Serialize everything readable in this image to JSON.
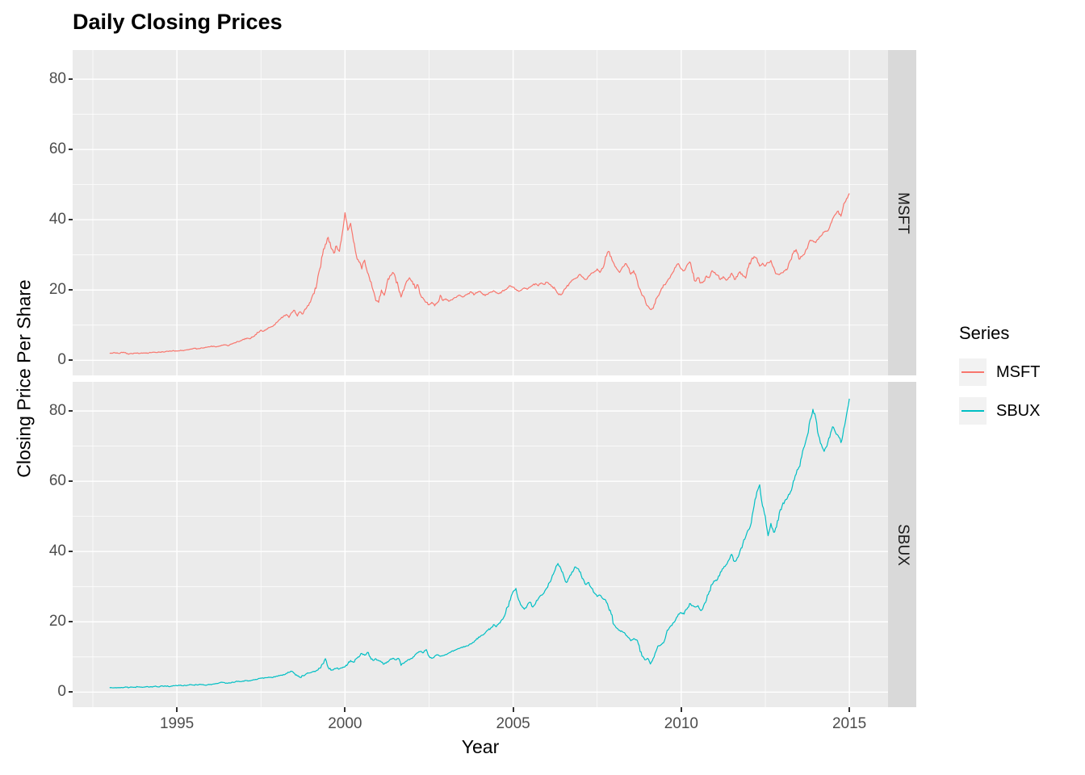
{
  "title": "Daily Closing Prices",
  "axes": {
    "x_label": "Year",
    "y_label": "Closing Price Per Share",
    "x_ticks": [
      1995,
      2000,
      2005,
      2010,
      2015
    ],
    "y_ticks": [
      0,
      20,
      40,
      60,
      80
    ]
  },
  "facets": [
    "MSFT",
    "SBUX"
  ],
  "legend": {
    "title": "Series",
    "entries": [
      {
        "label": "MSFT",
        "color": "#F8766D"
      },
      {
        "label": "SBUX",
        "color": "#00BFC4"
      }
    ]
  },
  "colors": {
    "panel_bg": "#EBEBEB",
    "strip_bg": "#D9D9D9",
    "grid": "#FFFFFF",
    "tick_text": "#4D4D4D",
    "msft": "#F8766D",
    "sbux": "#00BFC4"
  },
  "chart_data": {
    "type": "line",
    "title": "Daily Closing Prices",
    "xlabel": "Year",
    "ylabel": "Closing Price Per Share",
    "facet_layout": "rows",
    "grid": true,
    "legend_position": "right",
    "x_range": [
      1991.9,
      2016.15
    ],
    "y_range": [
      -4.3,
      88.3
    ],
    "x_start": 1993.0,
    "x_step_years": 0.0833333,
    "series": [
      {
        "name": "MSFT",
        "facet": "MSFT",
        "color": "#F8766D",
        "values": [
          2.0,
          2.0,
          2.1,
          2.0,
          2.2,
          2.3,
          1.9,
          1.8,
          1.9,
          2.0,
          2.1,
          2.0,
          2.1,
          2.0,
          2.1,
          2.2,
          2.3,
          2.2,
          2.3,
          2.4,
          2.5,
          2.5,
          2.6,
          2.7,
          2.6,
          2.7,
          2.8,
          2.9,
          3.0,
          3.2,
          3.4,
          3.2,
          3.3,
          3.5,
          3.6,
          3.8,
          3.9,
          4.0,
          3.8,
          4.0,
          4.3,
          4.4,
          4.2,
          4.5,
          4.8,
          5.0,
          5.3,
          5.6,
          5.9,
          6.3,
          6.1,
          6.6,
          7.3,
          7.9,
          8.6,
          8.3,
          8.9,
          9.3,
          9.6,
          10.1,
          11.0,
          11.8,
          12.5,
          13.0,
          12.2,
          13.6,
          14.2,
          12.6,
          13.8,
          13.2,
          14.6,
          15.6,
          17.5,
          19.0,
          22.0,
          26.0,
          30.0,
          33.0,
          35.0,
          32.0,
          30.5,
          32.5,
          31.0,
          36.0,
          42.0,
          37.0,
          39.0,
          34.0,
          30.0,
          28.0,
          26.0,
          28.5,
          25.0,
          22.5,
          20.0,
          17.0,
          16.5,
          20.0,
          18.5,
          22.0,
          24.0,
          25.0,
          23.5,
          21.0,
          18.0,
          20.0,
          22.5,
          23.5,
          22.5,
          20.5,
          21.5,
          18.5,
          17.5,
          16.5,
          15.8,
          16.5,
          15.5,
          16.5,
          18.5,
          17.0,
          17.5,
          16.8,
          17.2,
          17.8,
          18.2,
          18.5,
          18.0,
          18.6,
          19.0,
          19.5,
          18.6,
          19.2,
          19.6,
          19.0,
          18.4,
          18.8,
          19.4,
          19.8,
          19.2,
          19.0,
          19.6,
          20.0,
          20.6,
          21.2,
          20.8,
          20.2,
          19.6,
          20.0,
          20.6,
          20.2,
          20.8,
          21.4,
          21.8,
          21.2,
          22.0,
          21.6,
          22.2,
          21.6,
          21.0,
          20.2,
          19.0,
          18.6,
          19.8,
          20.8,
          21.8,
          22.8,
          23.2,
          23.6,
          24.4,
          23.6,
          23.0,
          24.0,
          24.8,
          25.2,
          26.0,
          25.0,
          26.2,
          29.5,
          31.0,
          29.5,
          27.5,
          26.0,
          25.0,
          26.5,
          27.5,
          26.5,
          24.5,
          25.5,
          23.5,
          20.5,
          18.5,
          17.5,
          15.5,
          14.5,
          14.8,
          17.5,
          18.5,
          20.5,
          21.5,
          22.5,
          23.5,
          25.0,
          26.5,
          27.5,
          26.0,
          25.5,
          27.0,
          28.0,
          25.0,
          22.5,
          23.5,
          22.0,
          22.5,
          24.0,
          23.5,
          25.5,
          25.0,
          24.2,
          23.0,
          23.8,
          22.8,
          23.6,
          24.8,
          23.0,
          23.8,
          25.2,
          24.0,
          23.4,
          26.5,
          28.5,
          29.5,
          29.0,
          26.8,
          27.6,
          26.8,
          27.8,
          28.4,
          26.4,
          24.6,
          24.4,
          24.9,
          25.5,
          26.2,
          28.5,
          30.5,
          31.5,
          28.8,
          29.5,
          30.2,
          31.8,
          34.2,
          34.0,
          33.5,
          34.5,
          35.5,
          36.5,
          36.8,
          38.0,
          40.2,
          41.5,
          42.5,
          41.0,
          44.5,
          46.0,
          47.5
        ]
      },
      {
        "name": "SBUX",
        "facet": "SBUX",
        "color": "#00BFC4",
        "values": [
          1.2,
          1.2,
          1.3,
          1.2,
          1.3,
          1.3,
          1.4,
          1.3,
          1.4,
          1.4,
          1.5,
          1.4,
          1.4,
          1.5,
          1.4,
          1.5,
          1.6,
          1.5,
          1.6,
          1.7,
          1.7,
          1.6,
          1.7,
          1.8,
          1.8,
          1.9,
          1.8,
          1.9,
          2.0,
          2.1,
          2.0,
          2.1,
          2.2,
          2.1,
          2.0,
          2.1,
          2.2,
          2.3,
          2.4,
          2.6,
          2.8,
          2.7,
          2.5,
          2.6,
          2.8,
          3.0,
          3.1,
          3.0,
          3.1,
          3.3,
          3.2,
          3.4,
          3.6,
          3.8,
          4.0,
          3.9,
          4.1,
          4.2,
          4.1,
          4.3,
          4.5,
          4.8,
          5.0,
          5.3,
          5.6,
          5.9,
          5.3,
          4.6,
          4.2,
          4.7,
          5.1,
          5.4,
          5.6,
          5.9,
          6.2,
          6.8,
          8.0,
          9.5,
          7.0,
          6.2,
          6.5,
          6.8,
          6.6,
          6.9,
          7.2,
          8.0,
          9.0,
          8.5,
          9.5,
          10.0,
          11.0,
          10.5,
          11.3,
          10.0,
          9.0,
          9.5,
          9.0,
          8.5,
          8.0,
          8.6,
          9.2,
          9.6,
          9.2,
          9.6,
          7.6,
          8.2,
          8.8,
          9.2,
          9.6,
          10.6,
          11.2,
          11.6,
          11.2,
          12.1,
          10.2,
          9.6,
          10.2,
          10.6,
          10.2,
          10.4,
          10.7,
          11.1,
          11.6,
          11.9,
          12.2,
          12.5,
          12.7,
          13.0,
          13.2,
          13.7,
          14.2,
          15.2,
          15.6,
          16.2,
          16.8,
          17.6,
          18.2,
          19.2,
          18.6,
          19.6,
          20.6,
          21.8,
          24.2,
          26.2,
          28.6,
          29.5,
          26.2,
          24.6,
          23.6,
          24.6,
          25.6,
          24.2,
          25.2,
          26.6,
          27.6,
          28.2,
          29.6,
          31.2,
          33.2,
          34.8,
          36.6,
          35.2,
          33.2,
          31.2,
          32.6,
          34.2,
          35.6,
          35.2,
          34.2,
          32.2,
          30.6,
          31.2,
          29.6,
          28.2,
          27.2,
          27.6,
          26.6,
          26.2,
          24.2,
          22.2,
          19.2,
          18.2,
          17.6,
          17.2,
          16.6,
          15.6,
          14.6,
          15.2,
          14.9,
          13.2,
          10.2,
          9.2,
          9.6,
          8.0,
          9.6,
          11.6,
          13.2,
          13.6,
          14.6,
          17.6,
          18.6,
          19.6,
          20.6,
          22.2,
          22.6,
          22.2,
          23.6,
          25.2,
          24.6,
          24.2,
          24.6,
          23.2,
          24.6,
          26.2,
          28.6,
          30.6,
          31.6,
          32.2,
          34.2,
          35.2,
          36.2,
          37.6,
          39.2,
          37.2,
          38.2,
          40.2,
          42.2,
          44.2,
          46.2,
          48.2,
          53.0,
          57.0,
          59.0,
          53.0,
          50.0,
          44.5,
          48.0,
          45.5,
          47.0,
          51.0,
          53.0,
          54.5,
          55.5,
          57.0,
          60.0,
          62.0,
          64.0,
          67.0,
          70.0,
          73.0,
          77.5,
          80.5,
          78.0,
          73.0,
          70.5,
          68.5,
          70.0,
          72.5,
          75.5,
          74.0,
          73.0,
          71.0,
          75.0,
          79.0,
          83.5
        ]
      }
    ]
  }
}
